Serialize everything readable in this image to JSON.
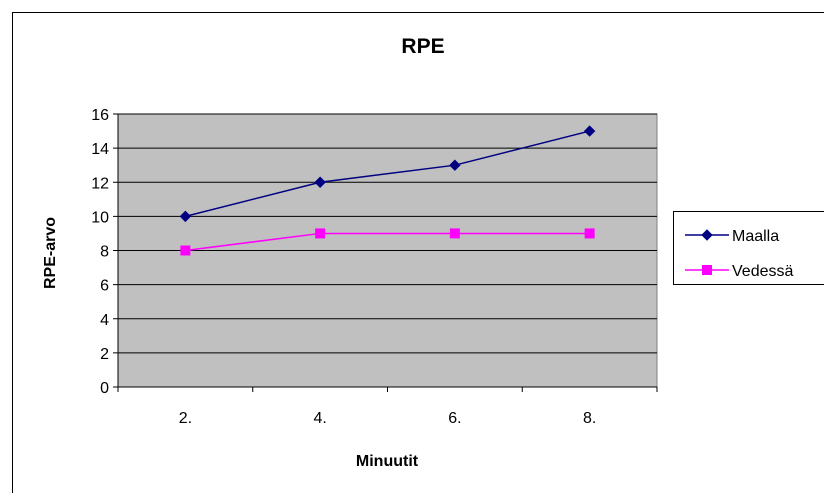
{
  "chart_data": {
    "type": "line",
    "title": "RPE",
    "xlabel": "Minuutit",
    "ylabel": "RPE-arvo",
    "categories": [
      "2.",
      "4.",
      "6.",
      "8."
    ],
    "ylim": [
      0,
      16
    ],
    "yticks": [
      "0",
      "2",
      "4",
      "6",
      "8",
      "10",
      "12",
      "14",
      "16"
    ],
    "grid": true,
    "legend_position": "right",
    "plot_background": "#c0c0c0",
    "series": [
      {
        "name": "Maalla",
        "values": [
          10,
          12,
          13,
          15
        ],
        "color": "#000080",
        "marker": "diamond"
      },
      {
        "name": "Vedessä",
        "values": [
          8,
          9,
          9,
          9
        ],
        "color": "#ff00ff",
        "marker": "square"
      }
    ]
  }
}
